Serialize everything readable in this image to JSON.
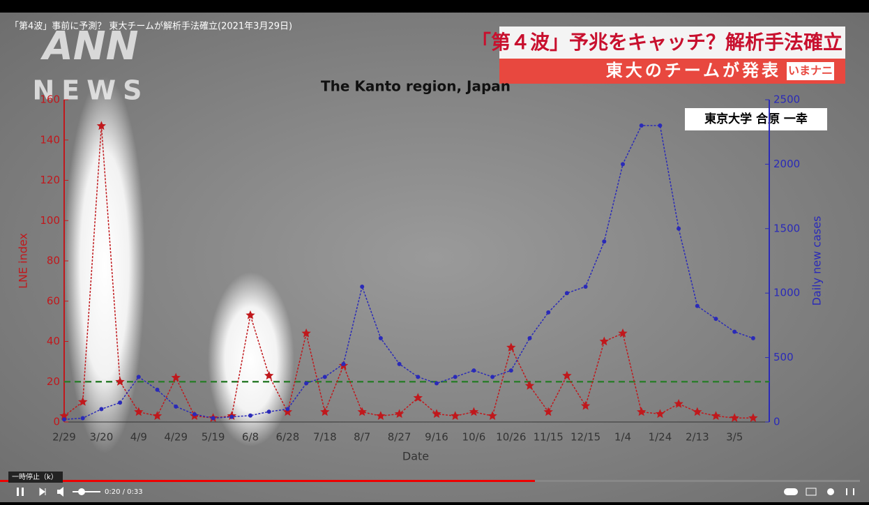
{
  "video": {
    "title": "「第4波」事前に予測？ 東大チームが解析手法確立(2021年3月29日)",
    "logo_top": "ANN",
    "logo_bottom": "NEWS"
  },
  "banner": {
    "headline": "「第４波」予兆をキャッチ？解析手法確立",
    "subline": "東大のチームが発表",
    "tag": "いまナニ",
    "speaker": "東京大学 合原 一幸"
  },
  "player": {
    "tooltip": "一時停止（k）",
    "time": "0:20 / 0:33"
  },
  "chart_data": {
    "type": "line",
    "title": "The Kanto region, Japan",
    "x_label": "Date",
    "y_label": "LNE index",
    "y2_label": "Daily new cases",
    "categories": [
      "2/29",
      null,
      "3/20",
      null,
      "4/9",
      null,
      "4/29",
      null,
      "5/19",
      null,
      "6/8",
      null,
      "6/28",
      null,
      "7/18",
      null,
      "8/7",
      null,
      "8/27",
      null,
      "9/16",
      null,
      "10/6",
      null,
      "10/26",
      null,
      "11/15",
      null,
      "12/15",
      null,
      "1/4",
      null,
      "1/24",
      null,
      "2/13",
      null,
      "3/5",
      null
    ],
    "series": [
      {
        "name": "LNE index",
        "color": "#c0181c",
        "values": [
          3,
          10,
          147,
          20,
          5,
          3,
          22,
          3,
          2,
          3,
          53,
          23,
          5,
          44,
          5,
          28,
          5,
          3,
          4,
          12,
          4,
          3,
          5,
          3,
          37,
          18,
          5,
          23,
          8,
          40,
          44,
          5,
          4,
          9,
          5,
          3,
          2,
          2
        ]
      },
      {
        "name": "Daily new cases",
        "color": "#2a2ab8",
        "axis": "y2",
        "values": [
          20,
          30,
          100,
          150,
          350,
          250,
          120,
          60,
          30,
          40,
          50,
          80,
          100,
          300,
          350,
          450,
          1050,
          650,
          450,
          350,
          300,
          350,
          400,
          350,
          400,
          650,
          850,
          1000,
          1050,
          1400,
          2000,
          2300,
          2300,
          1500,
          900,
          800,
          700,
          650
        ]
      }
    ],
    "threshold": 20,
    "threshold_color": "#2e7d2e",
    "ylim": [
      0,
      160
    ],
    "yticks": [
      0,
      20,
      40,
      60,
      80,
      100,
      120,
      140,
      160
    ],
    "y2lim": [
      0,
      2500
    ],
    "y2ticks": [
      0,
      500,
      1000,
      1500,
      2000,
      2500
    ]
  }
}
